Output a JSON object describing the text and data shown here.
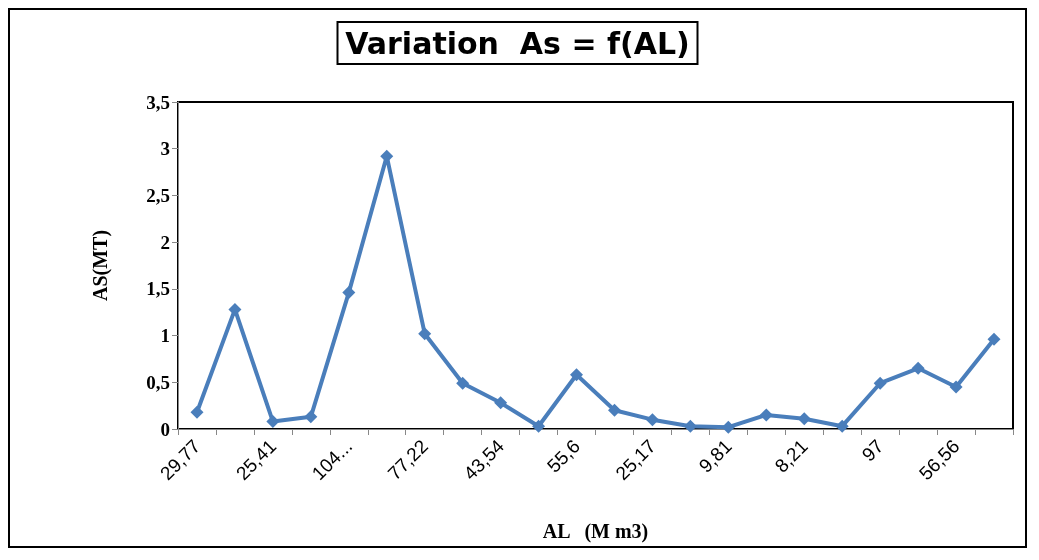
{
  "chart_data": {
    "type": "line",
    "title": "Variation  As = f(AL)",
    "xlabel": "AL   (M m3)",
    "ylabel": "AS(MT)",
    "categories": [
      "29,77",
      null,
      "25,41",
      null,
      "104...",
      null,
      "77,22",
      null,
      "43,54",
      null,
      "55,6",
      null,
      "25,17",
      null,
      "9,81",
      null,
      "8,21",
      null,
      "97",
      null,
      "56,56",
      null
    ],
    "series": [
      {
        "color": "#4a7ebb",
        "values": [
          0.18,
          1.28,
          0.08,
          0.13,
          1.46,
          2.92,
          1.02,
          0.49,
          0.28,
          0.03,
          0.58,
          0.2,
          0.1,
          0.03,
          0.02,
          0.15,
          0.11,
          0.03,
          0.49,
          0.65,
          0.45,
          0.96
        ]
      }
    ],
    "ylim": [
      0,
      3.5
    ],
    "yticks": [
      0,
      {
        "value": 0.5,
        "label": "0,5"
      },
      1,
      {
        "value": 1.5,
        "label": "1,5"
      },
      2,
      {
        "value": 2.5,
        "label": "2,5"
      },
      3,
      {
        "value": 3.5,
        "label": "3,5"
      }
    ],
    "marker": "diamond",
    "grid": false
  }
}
